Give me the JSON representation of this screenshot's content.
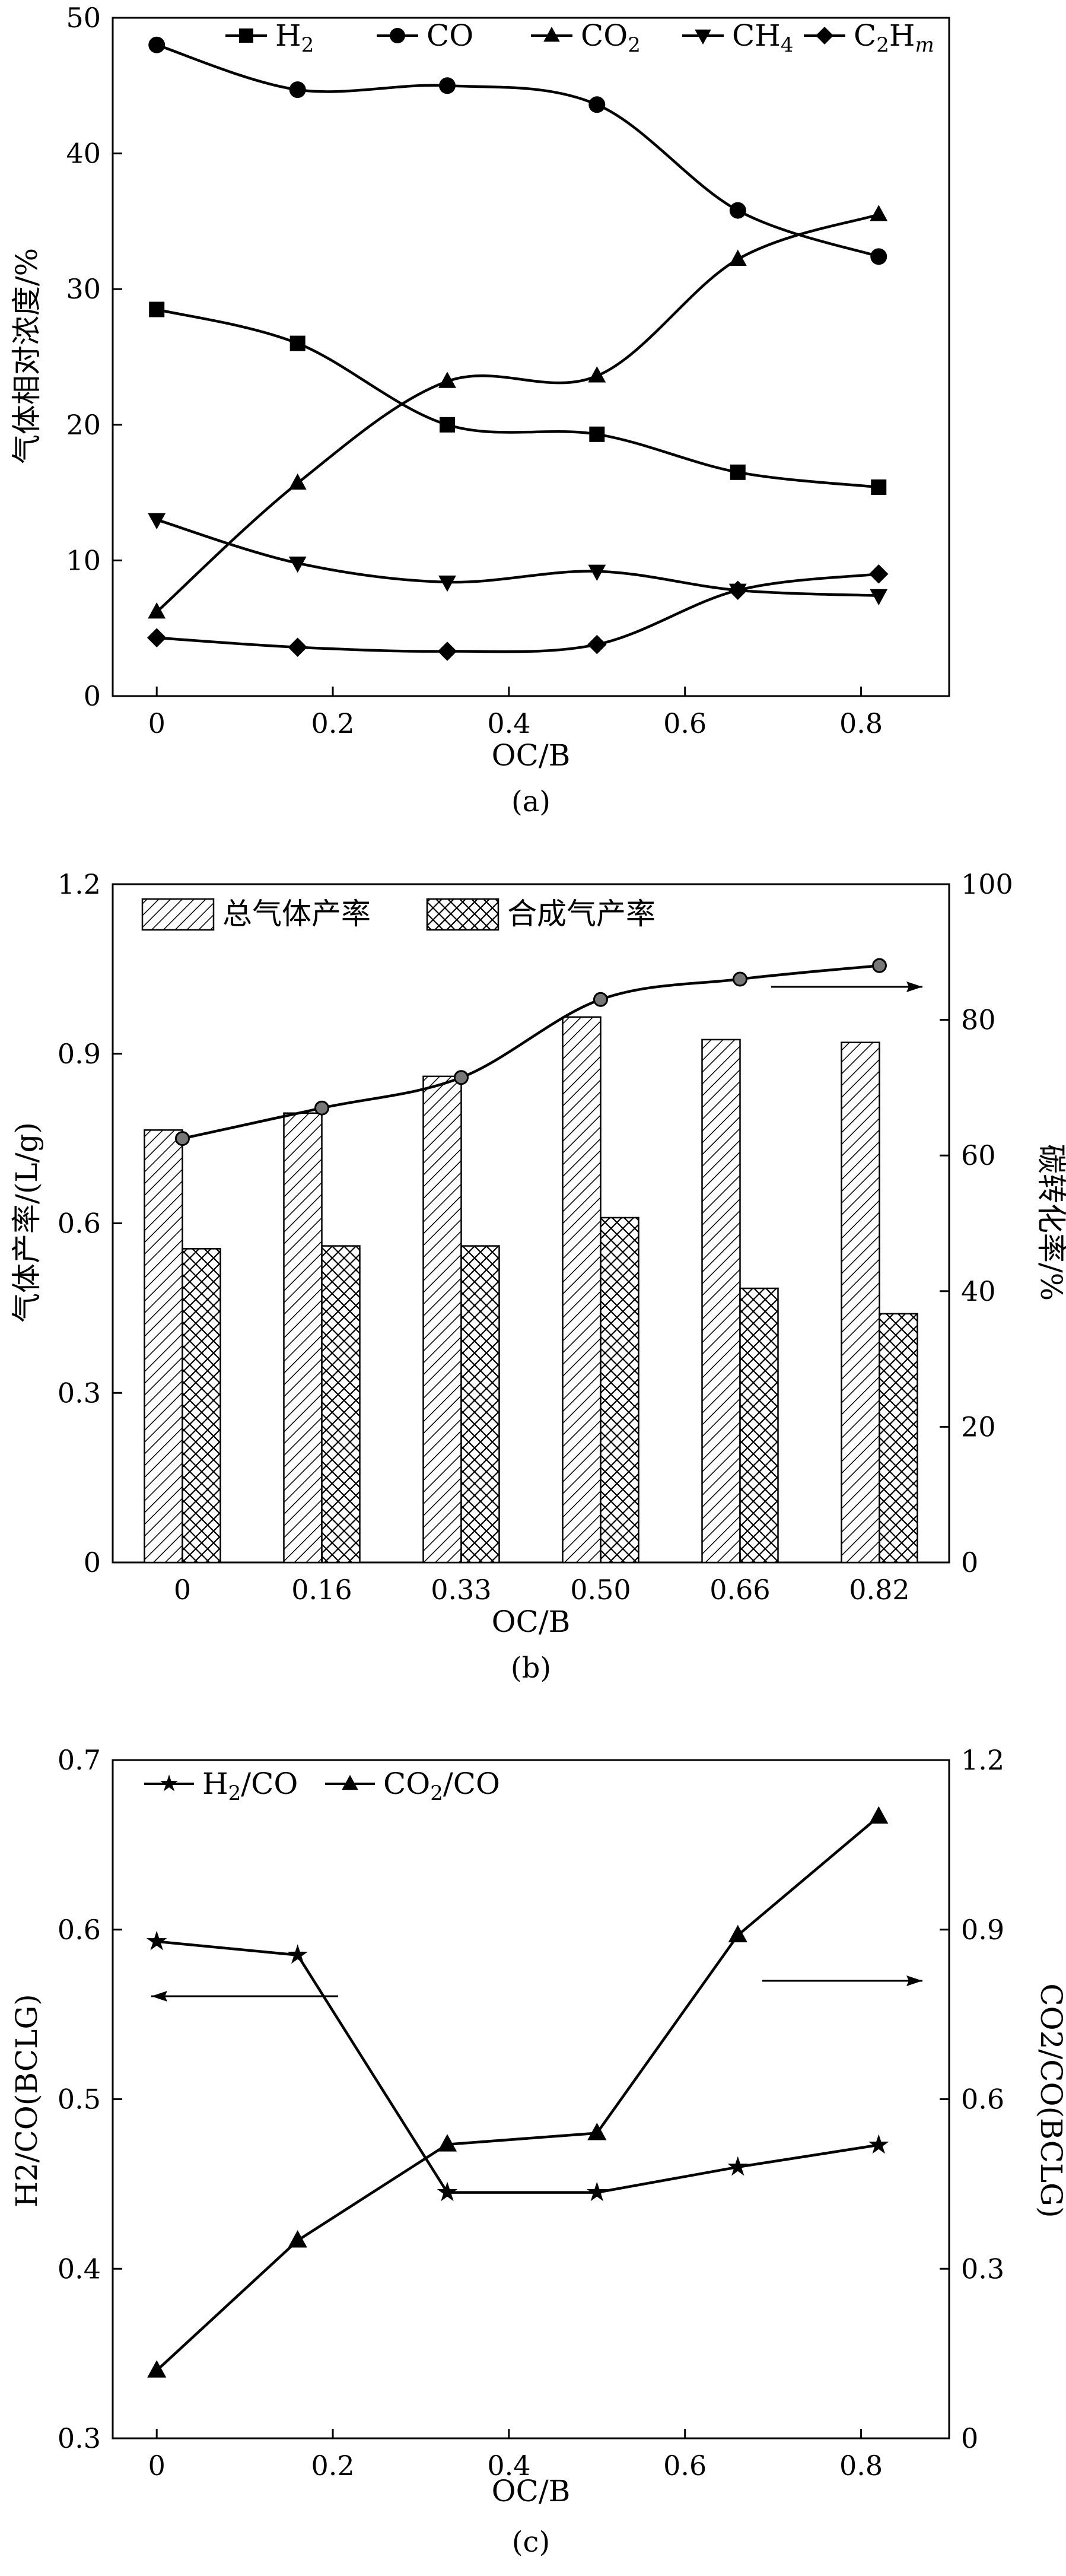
{
  "chart_data": [
    {
      "type": "line",
      "caption": "(a)",
      "xlabel": "OC/B",
      "ylabel": "气体相对浓度/%",
      "xlim": [
        -0.05,
        0.9
      ],
      "ylim": [
        0,
        50
      ],
      "xticks": [
        "0",
        "0.2",
        "0.4",
        "0.6",
        "0.8"
      ],
      "yticks": [
        "0",
        "10",
        "20",
        "30",
        "40",
        "50"
      ],
      "legend_position": "top",
      "x": [
        0,
        0.16,
        0.33,
        0.5,
        0.66,
        0.82
      ],
      "series": [
        {
          "name": "H2",
          "label_main": "H",
          "label_sub": "2",
          "label_tail": "",
          "marker": "square",
          "values": [
            28.5,
            26.0,
            20.0,
            19.3,
            16.5,
            15.4
          ]
        },
        {
          "name": "CO",
          "label_main": "CO",
          "label_sub": "",
          "label_tail": "",
          "marker": "circle",
          "values": [
            48.0,
            44.7,
            45.0,
            43.6,
            35.8,
            32.4
          ]
        },
        {
          "name": "CO2",
          "label_main": "CO",
          "label_sub": "2",
          "label_tail": "",
          "marker": "triangle-up",
          "values": [
            6.2,
            15.7,
            23.2,
            23.6,
            32.2,
            35.5
          ]
        },
        {
          "name": "CH4",
          "label_main": "CH",
          "label_sub": "4",
          "label_tail": "",
          "marker": "triangle-down",
          "values": [
            13.0,
            9.8,
            8.4,
            9.2,
            7.8,
            7.4
          ]
        },
        {
          "name": "C2Hm",
          "label_main": "C",
          "label_sub": "2",
          "label_tail": "H",
          "label_sub2": "m",
          "marker": "diamond",
          "values": [
            4.3,
            3.6,
            3.3,
            3.8,
            7.8,
            9.0
          ]
        }
      ]
    },
    {
      "type": "bar",
      "caption": "(b)",
      "xlabel": "OC/B",
      "ylabel": "气体产率/(L/g)",
      "ylabel_right": "碳转化率/%",
      "categories": [
        "0",
        "0.16",
        "0.33",
        "0.50",
        "0.66",
        "0.82"
      ],
      "ylim": [
        0,
        1.2
      ],
      "ylim_right": [
        0,
        100
      ],
      "yticks": [
        "0",
        "0.3",
        "0.6",
        "0.9",
        "1.2"
      ],
      "yticks_right": [
        "0",
        "20",
        "40",
        "60",
        "80",
        "100"
      ],
      "legend_position": "top-left",
      "series": [
        {
          "name": "总气体产率",
          "pattern": "diagonal",
          "values": [
            0.765,
            0.795,
            0.86,
            0.965,
            0.925,
            0.92
          ]
        },
        {
          "name": "合成气产率",
          "pattern": "crosshatch",
          "values": [
            0.555,
            0.56,
            0.56,
            0.61,
            0.485,
            0.44
          ]
        }
      ],
      "line_series": {
        "name": "",
        "axis": "right",
        "values": [
          62.5,
          67,
          71.5,
          83,
          86,
          88
        ]
      }
    },
    {
      "type": "line",
      "caption": "(c)",
      "xlabel": "OC/B",
      "ylabel": "H2/CO(BCLG)",
      "ylabel_right": "CO2/CO(BCLG)",
      "xlim": [
        -0.05,
        0.9
      ],
      "ylim": [
        0.3,
        0.7
      ],
      "ylim_right": [
        0,
        1.2
      ],
      "xticks": [
        "0",
        "0.2",
        "0.4",
        "0.6",
        "0.8"
      ],
      "yticks": [
        "0.3",
        "0.4",
        "0.5",
        "0.6",
        "0.7"
      ],
      "yticks_right": [
        "0",
        "0.3",
        "0.6",
        "0.9",
        "1.2"
      ],
      "legend_position": "top-left",
      "x": [
        0,
        0.16,
        0.33,
        0.5,
        0.66,
        0.82
      ],
      "series": [
        {
          "name": "H2/CO",
          "label_main": "H",
          "label_sub": "2",
          "label_tail": "/CO",
          "marker": "star",
          "axis": "left",
          "values": [
            0.593,
            0.585,
            0.445,
            0.445,
            0.46,
            0.473
          ]
        },
        {
          "name": "CO2/CO",
          "label_main": "CO",
          "label_sub": "2",
          "label_tail": "/CO",
          "marker": "triangle-up",
          "axis": "right",
          "values": [
            0.12,
            0.35,
            0.52,
            0.54,
            0.89,
            1.1
          ]
        }
      ]
    }
  ]
}
